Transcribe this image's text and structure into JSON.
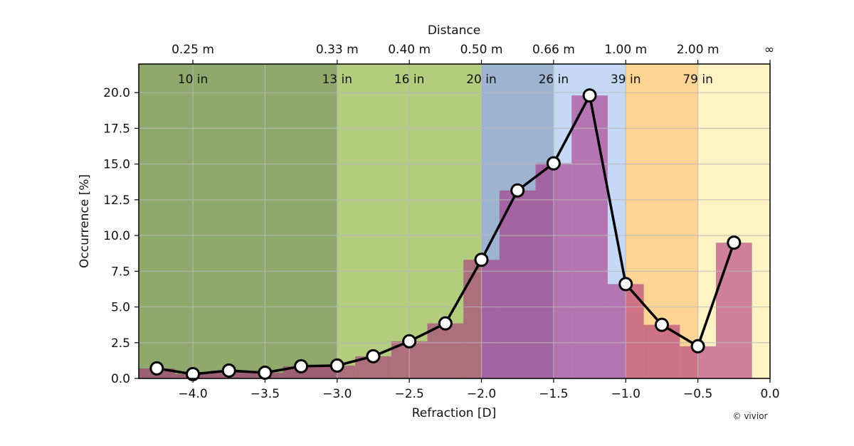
{
  "chart_data": {
    "type": "bar",
    "xlabel": "Refraction [D]",
    "ylabel": "Occurrence [%]",
    "top_axis_label": "Distance",
    "xlim": [
      -4.375,
      0.0
    ],
    "ylim": [
      0.0,
      22.0
    ],
    "x_ticks": [
      -4.0,
      -3.5,
      -3.0,
      -2.5,
      -2.0,
      -1.5,
      -1.0,
      -0.5,
      0.0
    ],
    "x_tick_labels": [
      "−4.0",
      "−3.5",
      "−3.0",
      "−2.5",
      "−2.0",
      "−1.5",
      "−1.0",
      "−0.5",
      "0.0"
    ],
    "y_ticks": [
      0.0,
      2.5,
      5.0,
      7.5,
      10.0,
      12.5,
      15.0,
      17.5,
      20.0
    ],
    "y_tick_labels": [
      "0.0",
      "2.5",
      "5.0",
      "7.5",
      "10.0",
      "12.5",
      "15.0",
      "17.5",
      "20.0"
    ],
    "top_ticks": [
      {
        "x": -4.0,
        "label": "0.25 m"
      },
      {
        "x": -3.0,
        "label": "0.33 m"
      },
      {
        "x": -2.5,
        "label": "0.40 m"
      },
      {
        "x": -2.0,
        "label": "0.50 m"
      },
      {
        "x": -1.5,
        "label": "0.66 m"
      },
      {
        "x": -1.0,
        "label": "1.00 m"
      },
      {
        "x": -0.5,
        "label": "2.00 m"
      },
      {
        "x": 0.0,
        "label": "∞"
      }
    ],
    "inch_labels": [
      {
        "x": -4.0,
        "label": "10 in"
      },
      {
        "x": -3.0,
        "label": "13 in"
      },
      {
        "x": -2.5,
        "label": "16 in"
      },
      {
        "x": -2.0,
        "label": "20 in"
      },
      {
        "x": -1.5,
        "label": "26 in"
      },
      {
        "x": -1.0,
        "label": "39 in"
      },
      {
        "x": -0.5,
        "label": "79 in"
      }
    ],
    "zones": [
      {
        "from": -4.375,
        "to": -3.0,
        "color": "#8ea96b"
      },
      {
        "from": -3.0,
        "to": -2.0,
        "color": "#b3cd7f"
      },
      {
        "from": -2.0,
        "to": -1.5,
        "color": "#9eb3d1"
      },
      {
        "from": -1.5,
        "to": -1.0,
        "color": "#c5d9f7"
      },
      {
        "from": -1.0,
        "to": -0.5,
        "color": "#fdd494"
      },
      {
        "from": -0.5,
        "to": 0.0,
        "color": "#fff3c4"
      }
    ],
    "bin_width": 0.25,
    "series": [
      {
        "name": "Occurrence",
        "x": [
          -4.25,
          -4.0,
          -3.75,
          -3.5,
          -3.25,
          -3.0,
          -2.75,
          -2.5,
          -2.25,
          -2.0,
          -1.75,
          -1.5,
          -1.25,
          -1.0,
          -0.75,
          -0.5,
          -0.25
        ],
        "values": [
          0.7,
          0.3,
          0.55,
          0.4,
          0.85,
          0.9,
          1.55,
          2.6,
          3.85,
          8.3,
          13.15,
          15.05,
          19.8,
          6.6,
          3.75,
          2.25,
          9.5
        ]
      }
    ],
    "colors": {
      "bar_fill": "#a8237a",
      "bar_opacity": 0.55,
      "line": "#000000",
      "marker_fill": "#ffffff",
      "marker_edge": "#000000",
      "grid": "#b8b8b8"
    },
    "credit": "© vivior"
  }
}
